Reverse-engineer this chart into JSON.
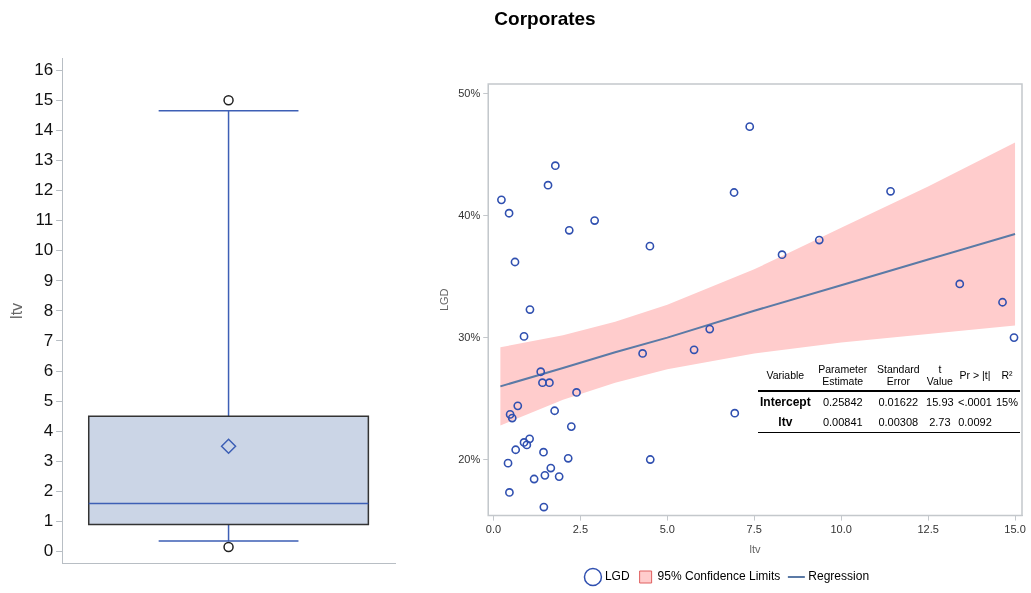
{
  "chart_data": [
    {
      "type": "box",
      "ylabel": "ltv",
      "categories": [
        null
      ],
      "color": "#cbd5e6",
      "boxes": [
        {
          "low": 0.35,
          "q1": 0.9,
          "median": 1.6,
          "q3": 4.5,
          "high": 14.65,
          "mean": 3.5,
          "outliers": [
            15,
            0.15
          ]
        }
      ],
      "ylim": [
        -0.4,
        16.4
      ],
      "yticks": [
        0,
        1,
        2,
        3,
        4,
        5,
        6,
        7,
        8,
        9,
        10,
        11,
        12,
        13,
        14,
        15,
        16
      ],
      "grid": false,
      "legend": false
    },
    {
      "type": "scatter",
      "title": "Corporates",
      "xlabel": "ltv",
      "ylabel": "LGD",
      "xlim": [
        -0.15,
        15.2
      ],
      "xticks": [
        {
          "value": 0,
          "label": "0.0"
        },
        {
          "value": 2.5,
          "label": "2.5"
        },
        {
          "value": 5,
          "label": "5.0"
        },
        {
          "value": 7.5,
          "label": "7.5"
        },
        {
          "value": 10,
          "label": "10.0"
        },
        {
          "value": 12.5,
          "label": "12.5"
        },
        {
          "value": 15,
          "label": "15.0"
        }
      ],
      "ylim": [
        15.4,
        50.8
      ],
      "yticks": [
        {
          "value": 20,
          "label": "20%"
        },
        {
          "value": 30,
          "label": "30%"
        },
        {
          "value": 40,
          "label": "40%"
        },
        {
          "value": 50,
          "label": "50%"
        }
      ],
      "grid": false,
      "legend": "bottom",
      "series": [
        {
          "name": "LGD",
          "type": "scatter",
          "marker": "circle",
          "color": "#3050b0",
          "x": [
            0.23,
            0.45,
            0.62,
            1.05,
            0.88,
            1.36,
            1.41,
            1.61,
            2.39,
            0.7,
            0.48,
            0.54,
            1.76,
            2.24,
            0.88,
            0.96,
            1.04,
            0.64,
            1.44,
            0.42,
            2.15,
            1.65,
            1.48,
            1.17,
            1.89,
            0.46,
            1.45,
            1.78,
            1.57,
            2.18,
            2.91,
            4.5,
            4.29,
            4.51,
            5.77,
            6.22,
            6.92,
            6.94,
            7.37,
            11.42,
            8.3,
            9.37,
            13.41,
            14.64,
            14.97
          ],
          "values": [
            41.3,
            40.2,
            36.2,
            32.3,
            30.1,
            27.2,
            26.3,
            26.3,
            25.5,
            24.4,
            23.7,
            23.4,
            24.0,
            22.7,
            21.4,
            21.2,
            21.7,
            20.8,
            20.6,
            19.7,
            20.1,
            19.3,
            18.7,
            18.4,
            18.6,
            17.3,
            16.1,
            44.1,
            42.5,
            38.8,
            39.6,
            37.5,
            28.7,
            20.0,
            29.0,
            30.7,
            41.9,
            23.8,
            47.3,
            42.0,
            36.8,
            38.0,
            34.4,
            32.9,
            30.0
          ]
        },
        {
          "name": "95% Confidence Limits",
          "type": "area",
          "marker": "none",
          "color": "#ffcccc"
        },
        {
          "name": "Regression",
          "type": "line",
          "marker": "none",
          "color": "#5b7aa6",
          "x": [
            0.2,
            2,
            3.5,
            5,
            7.5,
            10,
            12.5,
            15
          ],
          "values": [
            26.0,
            27.5,
            28.8,
            30.0,
            32.2,
            34.3,
            36.4,
            38.5
          ],
          "lower": [
            22.8,
            24.9,
            26.3,
            27.4,
            28.7,
            29.6,
            30.3,
            31.0
          ],
          "upper": [
            29.2,
            30.2,
            31.3,
            32.7,
            35.6,
            39.0,
            42.4,
            46.0
          ]
        }
      ],
      "annotations": [
        "Variable",
        "Parameter Estimate",
        "Standard Error",
        "t Value",
        "Pr > |t|",
        "R²",
        "Intercept",
        "0.25842",
        "0.01622",
        "15.93",
        "<.0001",
        "15%",
        "ltv",
        "0.00841",
        "0.00308",
        "2.73",
        "0.0092"
      ]
    }
  ]
}
